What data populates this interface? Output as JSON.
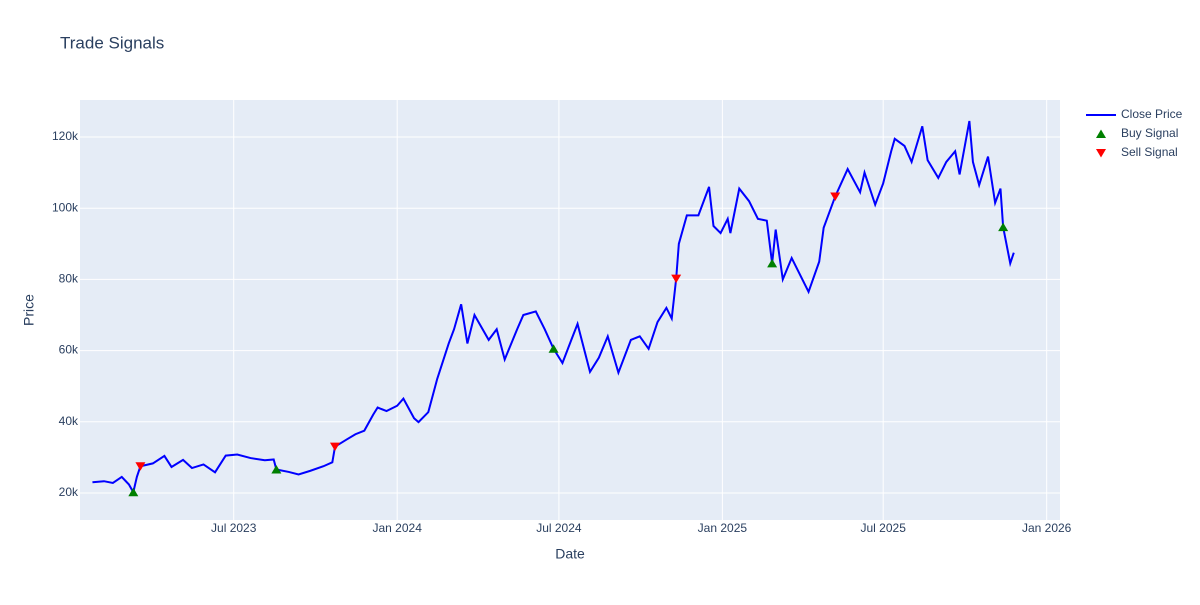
{
  "chart_data": {
    "type": "line",
    "title": "Trade Signals",
    "x_label": "Date",
    "y_label": "Price",
    "xlim": [
      "2023-01-09",
      "2026-01-16"
    ],
    "xticks": [
      {
        "value": "2023-07-01",
        "label": "Jul 2023"
      },
      {
        "value": "2024-01-01",
        "label": "Jan 2024"
      },
      {
        "value": "2024-07-01",
        "label": "Jul 2024"
      },
      {
        "value": "2025-01-01",
        "label": "Jan 2025"
      },
      {
        "value": "2025-07-01",
        "label": "Jul 2025"
      },
      {
        "value": "2026-01-01",
        "label": "Jan 2026"
      }
    ],
    "ylim": [
      12400,
      130400
    ],
    "yticks": [
      {
        "value": 20000,
        "label": "20k"
      },
      {
        "value": 40000,
        "label": "40k"
      },
      {
        "value": 60000,
        "label": "60k"
      },
      {
        "value": 80000,
        "label": "80k"
      },
      {
        "value": 100000,
        "label": "100k"
      },
      {
        "value": 120000,
        "label": "120k"
      }
    ],
    "grid": true,
    "legend": "right",
    "series": [
      {
        "name": "Close Price",
        "color": "#0000ff",
        "mode": "lines",
        "x": [
          "2023-01-23",
          "2023-02-05",
          "2023-02-15",
          "2023-02-25",
          "2023-03-05",
          "2023-03-10",
          "2023-03-14",
          "2023-03-18",
          "2023-04-01",
          "2023-04-14",
          "2023-04-22",
          "2023-05-05",
          "2023-05-15",
          "2023-05-28",
          "2023-06-10",
          "2023-06-22",
          "2023-07-05",
          "2023-07-20",
          "2023-08-05",
          "2023-08-15",
          "2023-08-18",
          "2023-09-01",
          "2023-09-12",
          "2023-09-25",
          "2023-10-10",
          "2023-10-20",
          "2023-10-23",
          "2023-11-05",
          "2023-11-15",
          "2023-11-25",
          "2023-12-05",
          "2023-12-10",
          "2023-12-20",
          "2024-01-01",
          "2024-01-08",
          "2024-01-20",
          "2024-01-25",
          "2024-02-05",
          "2024-02-15",
          "2024-02-28",
          "2024-03-05",
          "2024-03-13",
          "2024-03-20",
          "2024-03-28",
          "2024-04-13",
          "2024-04-22",
          "2024-05-01",
          "2024-05-15",
          "2024-05-22",
          "2024-06-05",
          "2024-06-15",
          "2024-06-25",
          "2024-07-05",
          "2024-07-15",
          "2024-07-22",
          "2024-08-05",
          "2024-08-15",
          "2024-08-25",
          "2024-09-06",
          "2024-09-20",
          "2024-09-30",
          "2024-10-10",
          "2024-10-20",
          "2024-10-30",
          "2024-11-05",
          "2024-11-10",
          "2024-11-13",
          "2024-11-22",
          "2024-12-05",
          "2024-12-17",
          "2024-12-22",
          "2024-12-30",
          "2025-01-07",
          "2025-01-10",
          "2025-01-20",
          "2025-01-31",
          "2025-02-10",
          "2025-02-20",
          "2025-02-26",
          "2025-03-02",
          "2025-03-10",
          "2025-03-20",
          "2025-04-08",
          "2025-04-20",
          "2025-04-25",
          "2025-05-08",
          "2025-05-22",
          "2025-06-05",
          "2025-06-10",
          "2025-06-22",
          "2025-07-01",
          "2025-07-10",
          "2025-07-14",
          "2025-07-25",
          "2025-08-02",
          "2025-08-14",
          "2025-08-20",
          "2025-09-01",
          "2025-09-10",
          "2025-09-20",
          "2025-09-25",
          "2025-10-06",
          "2025-10-10",
          "2025-10-17",
          "2025-10-27",
          "2025-11-04",
          "2025-11-10",
          "2025-11-13",
          "2025-11-21",
          "2025-11-25"
        ],
        "values": [
          23000,
          23300,
          22800,
          24500,
          22400,
          20200,
          24500,
          27500,
          28300,
          30400,
          27300,
          29300,
          27000,
          28000,
          25800,
          30500,
          30800,
          29800,
          29200,
          29400,
          26600,
          25900,
          25200,
          26200,
          27500,
          28600,
          33000,
          35000,
          36500,
          37500,
          42000,
          44000,
          43000,
          44500,
          46500,
          41000,
          39900,
          42700,
          52000,
          62000,
          66000,
          73000,
          62000,
          70000,
          63000,
          66000,
          57500,
          66000,
          70000,
          71000,
          66000,
          60500,
          56500,
          63000,
          67500,
          54000,
          58000,
          64000,
          53800,
          63000,
          64000,
          60500,
          68000,
          72000,
          69000,
          80200,
          90000,
          98000,
          98000,
          106000,
          95000,
          93000,
          97000,
          93000,
          105500,
          102000,
          97000,
          96500,
          84500,
          94000,
          80000,
          86000,
          76500,
          85000,
          94500,
          103300,
          111000,
          104500,
          110000,
          101000,
          107000,
          116000,
          119500,
          117500,
          113000,
          123000,
          113500,
          108500,
          113000,
          116000,
          109500,
          124500,
          113000,
          106500,
          114500,
          101500,
          105500,
          94700,
          84500,
          87500
        ]
      },
      {
        "name": "Buy Signal",
        "color": "#008000",
        "mode": "markers",
        "symbol": "triangle-up",
        "x": [
          "2023-03-10",
          "2023-08-18",
          "2024-06-25",
          "2025-02-26",
          "2025-11-13"
        ],
        "values": [
          20200,
          26600,
          60500,
          84500,
          94700
        ]
      },
      {
        "name": "Sell Signal",
        "color": "#ff0000",
        "mode": "markers",
        "symbol": "triangle-down",
        "x": [
          "2023-03-18",
          "2023-10-23",
          "2024-11-10",
          "2025-05-08"
        ],
        "values": [
          27500,
          33000,
          80200,
          103300
        ]
      }
    ]
  }
}
